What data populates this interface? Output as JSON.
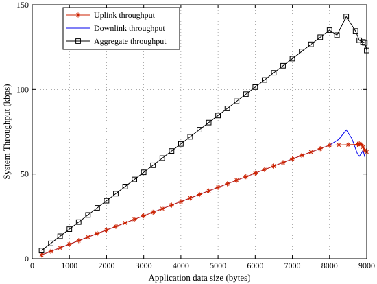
{
  "chart_data": {
    "type": "line",
    "xlabel": "Application data size (bytes)",
    "ylabel": "System Throughput (kbps)",
    "xlim": [
      0,
      9000
    ],
    "ylim": [
      0,
      150
    ],
    "xticks": [
      0,
      1000,
      2000,
      3000,
      4000,
      5000,
      6000,
      7000,
      8000,
      9000
    ],
    "yticks": [
      0,
      50,
      100,
      150
    ],
    "grid": true,
    "legend_position": "top-left",
    "series": [
      {
        "name": "Uplink throughput",
        "color": "#cc2200",
        "marker": "star",
        "x": [
          250,
          500,
          750,
          1000,
          1250,
          1500,
          1750,
          2000,
          2250,
          2500,
          2750,
          3000,
          3250,
          3500,
          3750,
          4000,
          4250,
          4500,
          4750,
          5000,
          5250,
          5500,
          5750,
          6000,
          6250,
          6500,
          6750,
          7000,
          7250,
          7500,
          7750,
          8000,
          8250,
          8500,
          8750,
          8800,
          8850,
          8900,
          8950,
          9000
        ],
        "y": [
          2.2,
          4.3,
          6.4,
          8.5,
          10.6,
          12.7,
          14.8,
          16.9,
          19.0,
          21.1,
          23.2,
          25.3,
          27.4,
          29.5,
          31.6,
          33.7,
          35.8,
          37.9,
          40.0,
          42.1,
          44.2,
          46.3,
          48.4,
          50.5,
          52.6,
          54.7,
          56.8,
          58.9,
          61.0,
          63.0,
          65.0,
          67.0,
          67.2,
          67.3,
          67.5,
          68.0,
          67.5,
          66.0,
          64.0,
          63.0
        ]
      },
      {
        "name": "Downlink throughput",
        "color": "#0000ee",
        "marker": "none",
        "x": [
          250,
          500,
          750,
          1000,
          1250,
          1500,
          1750,
          2000,
          2250,
          2500,
          2750,
          3000,
          3250,
          3500,
          3750,
          4000,
          4250,
          4500,
          4750,
          5000,
          5250,
          5500,
          5750,
          6000,
          6250,
          6500,
          6750,
          7000,
          7250,
          7500,
          7750,
          8000,
          8250,
          8450,
          8600,
          8750,
          8800,
          8850,
          8900,
          8950
        ],
        "y": [
          2.2,
          4.3,
          6.4,
          8.5,
          10.6,
          12.7,
          14.8,
          16.9,
          19.0,
          21.1,
          23.2,
          25.3,
          27.4,
          29.5,
          31.6,
          33.7,
          35.8,
          37.9,
          40.0,
          42.1,
          44.2,
          46.3,
          48.4,
          50.5,
          52.6,
          54.7,
          56.8,
          58.9,
          61.0,
          63.0,
          65.0,
          67.0,
          70.5,
          76.0,
          71.0,
          62.0,
          60.5,
          62.0,
          64.0,
          60.0
        ]
      },
      {
        "name": "Aggregate throughput",
        "color": "#000000",
        "marker": "square",
        "x": [
          250,
          500,
          750,
          1000,
          1250,
          1500,
          1750,
          2000,
          2250,
          2500,
          2750,
          3000,
          3250,
          3500,
          3750,
          4000,
          4250,
          4500,
          4750,
          5000,
          5250,
          5500,
          5750,
          6000,
          6250,
          6500,
          6750,
          7000,
          7250,
          7500,
          7750,
          8000,
          8200,
          8450,
          8700,
          8800,
          8900,
          8950,
          9000
        ],
        "y": [
          4.8,
          9.0,
          13.2,
          17.4,
          21.6,
          25.8,
          30.0,
          34.2,
          38.4,
          42.6,
          46.8,
          51.0,
          55.2,
          59.4,
          63.6,
          67.8,
          72.0,
          76.2,
          80.4,
          84.6,
          88.8,
          93.0,
          97.2,
          101.4,
          105.6,
          109.8,
          114.0,
          118.2,
          122.4,
          126.6,
          130.8,
          135.0,
          132.0,
          143.0,
          134.5,
          129.0,
          128.0,
          127.5,
          123.0
        ]
      }
    ]
  }
}
